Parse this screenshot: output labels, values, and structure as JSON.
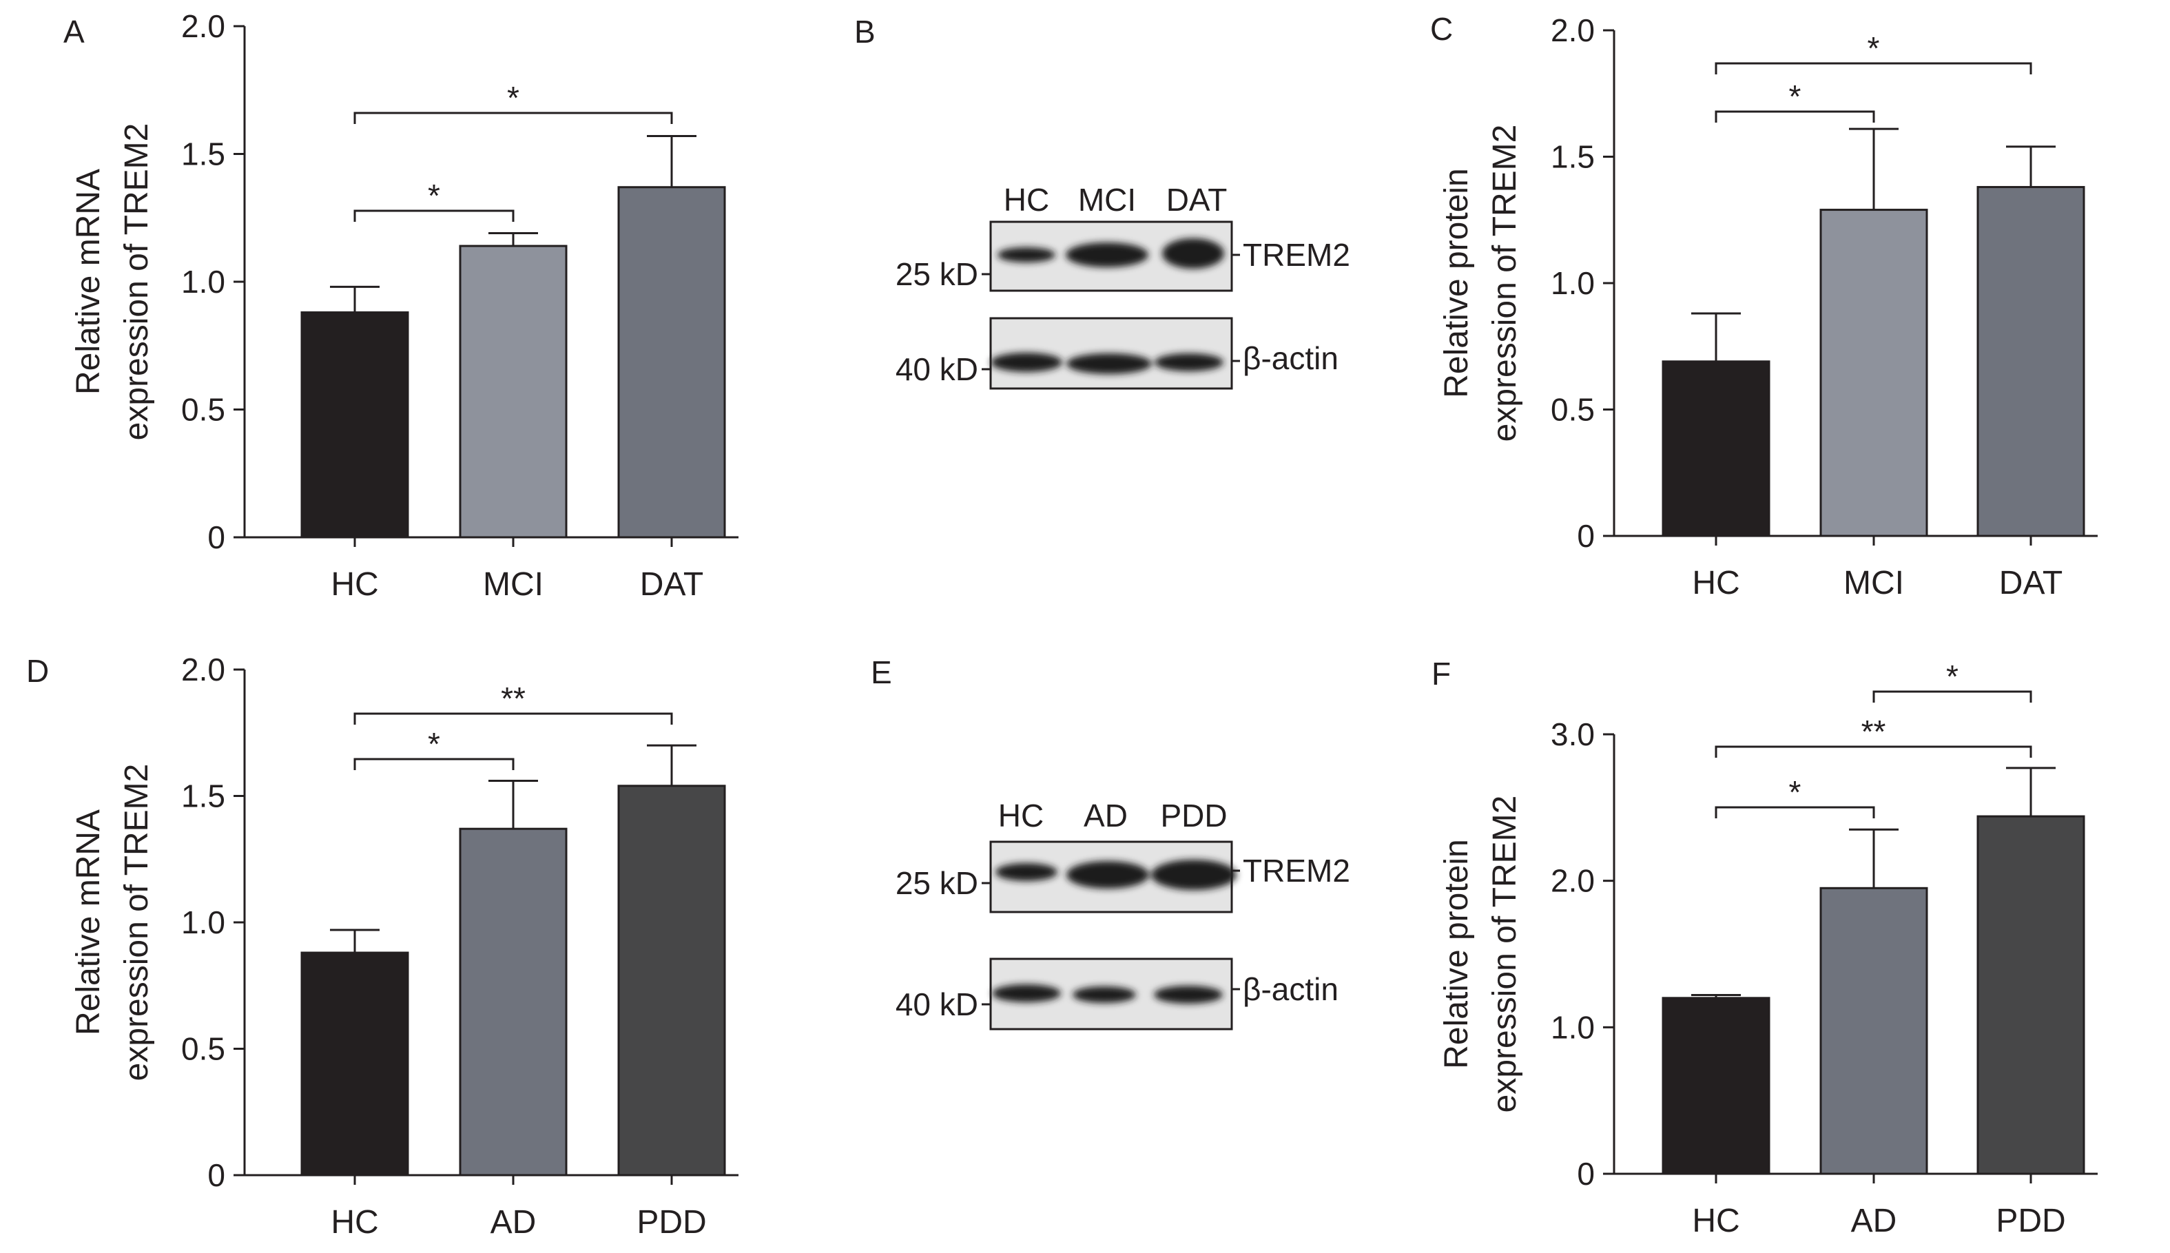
{
  "panels": [
    {
      "letter": "A",
      "kind": "chart"
    },
    {
      "letter": "B",
      "kind": "blot"
    },
    {
      "letter": "C",
      "kind": "chart"
    },
    {
      "letter": "D",
      "kind": "chart"
    },
    {
      "letter": "E",
      "kind": "blot"
    },
    {
      "letter": "F",
      "kind": "chart"
    }
  ],
  "blots": [
    {
      "panel": "B",
      "lanes": [
        "HC",
        "MCI",
        "DAT"
      ],
      "rows": [
        {
          "marker": "25 kD",
          "protein": "TREM2"
        },
        {
          "marker": "40 kD",
          "protein": "β-actin"
        }
      ]
    },
    {
      "panel": "E",
      "lanes": [
        "HC",
        "AD",
        "PDD"
      ],
      "rows": [
        {
          "marker": "25 kD",
          "protein": "TREM2"
        },
        {
          "marker": "40 kD",
          "protein": "β-actin"
        }
      ]
    }
  ],
  "colors": {
    "bar_black": "#231f20",
    "bar_light_gray": "#8e929c",
    "bar_slate": "#6f737d",
    "bar_dark_gray": "#474748",
    "axis": "#231f20",
    "blot_background": "#e4e4e4",
    "blot_band": "#1c1c1c"
  },
  "chart_data": [
    {
      "panel": "A",
      "type": "bar",
      "categories": [
        "HC",
        "MCI",
        "DAT"
      ],
      "values": [
        0.88,
        1.14,
        1.37
      ],
      "errors": [
        0.1,
        0.05,
        0.2
      ],
      "ylabel": [
        "Relative mRNA",
        "expression of TREM2"
      ],
      "ylim": [
        0,
        2.0
      ],
      "yticks": [
        "0",
        "0.5",
        "1.0",
        "1.5",
        "2.0"
      ],
      "significance": [
        {
          "from": 0,
          "to": 1,
          "label": "*"
        },
        {
          "from": 0,
          "to": 2,
          "label": "*"
        }
      ],
      "bar_colors": [
        "#231f20",
        "#8e929c",
        "#6f737d"
      ]
    },
    {
      "panel": "C",
      "type": "bar",
      "categories": [
        "HC",
        "MCI",
        "DAT"
      ],
      "values": [
        0.69,
        1.29,
        1.38
      ],
      "errors": [
        0.19,
        0.32,
        0.16
      ],
      "ylabel": [
        "Relative protein",
        "expression of TREM2"
      ],
      "ylim": [
        0,
        2.0
      ],
      "yticks": [
        "0",
        "0.5",
        "1.0",
        "1.5",
        "2.0"
      ],
      "significance": [
        {
          "from": 0,
          "to": 1,
          "label": "*"
        },
        {
          "from": 0,
          "to": 2,
          "label": "*"
        }
      ],
      "bar_colors": [
        "#231f20",
        "#8e929c",
        "#6f737d"
      ]
    },
    {
      "panel": "D",
      "type": "bar",
      "categories": [
        "HC",
        "AD",
        "PDD"
      ],
      "values": [
        0.88,
        1.37,
        1.54
      ],
      "errors": [
        0.09,
        0.19,
        0.16
      ],
      "ylabel": [
        "Relative mRNA",
        "expression of TREM2"
      ],
      "ylim": [
        0,
        2.0
      ],
      "yticks": [
        "0",
        "0.5",
        "1.0",
        "1.5",
        "2.0"
      ],
      "significance": [
        {
          "from": 0,
          "to": 1,
          "label": "*"
        },
        {
          "from": 0,
          "to": 2,
          "label": "**"
        }
      ],
      "bar_colors": [
        "#231f20",
        "#6f737d",
        "#474748"
      ]
    },
    {
      "panel": "F",
      "type": "bar",
      "categories": [
        "HC",
        "AD",
        "PDD"
      ],
      "values": [
        1.2,
        1.95,
        2.44
      ],
      "errors": [
        0.02,
        0.4,
        0.33
      ],
      "ylabel": [
        "Relative protein",
        "expression of TREM2"
      ],
      "ylim": [
        0,
        3.0
      ],
      "yticks": [
        "0",
        "1.0",
        "2.0",
        "3.0"
      ],
      "significance": [
        {
          "from": 0,
          "to": 1,
          "label": "*"
        },
        {
          "from": 0,
          "to": 2,
          "label": "**"
        },
        {
          "from": 1,
          "to": 2,
          "label": "*"
        }
      ],
      "bar_colors": [
        "#231f20",
        "#6f737d",
        "#474748"
      ]
    }
  ]
}
